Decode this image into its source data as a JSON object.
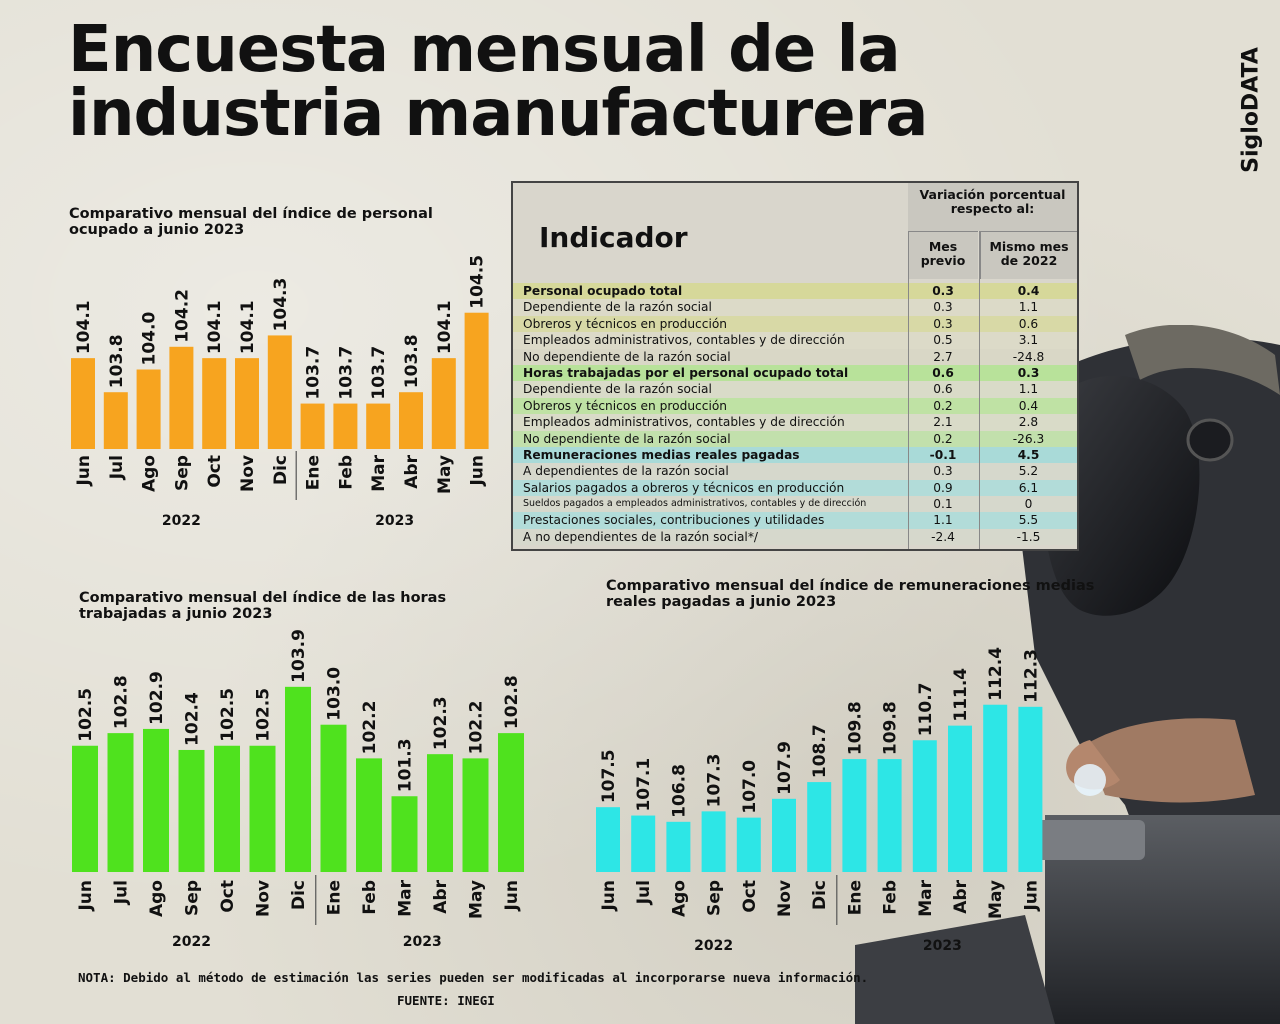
{
  "header": {
    "title_line1": "Encuesta mensual de la",
    "title_line2": "industria manufacturera",
    "brand": "SigloDATA"
  },
  "colors": {
    "personal": "#f7a41f",
    "horas": "#4fe21e",
    "remuneraciones": "#2de6e6"
  },
  "chart_data": [
    {
      "id": "personal",
      "type": "bar",
      "title": "Comparativo mensual del índice de personal ocupado a junio 2023",
      "categories": [
        "Jun",
        "Jul",
        "Ago",
        "Sep",
        "Oct",
        "Nov",
        "Dic",
        "Ene",
        "Feb",
        "Mar",
        "Abr",
        "May",
        "Jun"
      ],
      "values": [
        104.1,
        103.8,
        104.0,
        104.2,
        104.1,
        104.1,
        104.3,
        103.7,
        103.7,
        103.7,
        103.8,
        104.1,
        104.5
      ],
      "labels": [
        "104.1",
        "103.8",
        "104.0",
        "104.2",
        "104.1",
        "104.1",
        "104.3",
        "103.7",
        "103.7",
        "103.7",
        "103.8",
        "104.1",
        "104.5"
      ],
      "year_groups": [
        {
          "label": "2022",
          "from": 0,
          "to": 6
        },
        {
          "label": "2023",
          "from": 7,
          "to": 12
        }
      ],
      "ylim": [
        103.3,
        104.7
      ]
    },
    {
      "id": "horas",
      "type": "bar",
      "title": "Comparativo mensual del índice de las horas trabajadas a junio 2023",
      "categories": [
        "Jun",
        "Jul",
        "Ago",
        "Sep",
        "Oct",
        "Nov",
        "Dic",
        "Ene",
        "Feb",
        "Mar",
        "Abr",
        "May",
        "Jun"
      ],
      "values": [
        102.5,
        102.8,
        102.9,
        102.4,
        102.5,
        102.5,
        103.9,
        103.0,
        102.2,
        101.3,
        102.3,
        102.2,
        102.8
      ],
      "labels": [
        "102.5",
        "102.8",
        "102.9",
        "102.4",
        "102.5",
        "102.5",
        "103.9",
        "103.0",
        "102.2",
        "101.3",
        "102.3",
        "102.2",
        "102.8"
      ],
      "year_groups": [
        {
          "label": "2022",
          "from": 0,
          "to": 6
        },
        {
          "label": "2023",
          "from": 7,
          "to": 12
        }
      ],
      "ylim": [
        99.5,
        104.3
      ]
    },
    {
      "id": "remuneraciones",
      "type": "bar",
      "title": "Comparativo mensual del índice de remuneraciones medias reales pagadas a junio 2023",
      "categories": [
        "Jun",
        "Jul",
        "Ago",
        "Sep",
        "Oct",
        "Nov",
        "Dic",
        "Ene",
        "Feb",
        "Mar",
        "Abr",
        "May",
        "Jun"
      ],
      "values": [
        107.5,
        107.1,
        106.8,
        107.3,
        107.0,
        107.9,
        108.7,
        109.8,
        109.8,
        110.7,
        111.4,
        112.4,
        112.3
      ],
      "labels": [
        "107.5",
        "107.1",
        "106.8",
        "107.3",
        "107.0",
        "107.9",
        "108.7",
        "109.8",
        "109.8",
        "110.7",
        "111.4",
        "112.4",
        "112.3"
      ],
      "year_groups": [
        {
          "label": "2022",
          "from": 0,
          "to": 6
        },
        {
          "label": "2023",
          "from": 7,
          "to": 12
        }
      ],
      "ylim": [
        104.4,
        113.2
      ]
    }
  ],
  "table": {
    "header_indicator": "Indicador",
    "header_variation": "Variación porcentual respecto al:",
    "col1": "Mes previo",
    "col2": "Mismo mes de 2022",
    "rows": [
      {
        "label": "Personal ocupado total",
        "v1": "0.3",
        "v2": "0.4",
        "bold": true,
        "color": "#d6d89a"
      },
      {
        "label": "Dependiente de la razón social",
        "v1": "0.3",
        "v2": "1.1",
        "bold": false,
        "color": "#dcdac8"
      },
      {
        "label": "Obreros y técnicos en producción",
        "v1": "0.3",
        "v2": "0.6",
        "bold": false,
        "color": "#d8d9a6"
      },
      {
        "label": "Empleados administrativos, contables y de dirección",
        "v1": "0.5",
        "v2": "3.1",
        "bold": false,
        "color": "#dcdac8"
      },
      {
        "label": "No dependiente de la razón social",
        "v1": "2.7",
        "v2": "-24.8",
        "bold": false,
        "color": "#d9d7c6"
      },
      {
        "label": "Horas trabajadas por el personal ocupado total",
        "v1": "0.6",
        "v2": "0.3",
        "bold": true,
        "color": "#b8e29a"
      },
      {
        "label": "Dependiente de la razón social",
        "v1": "0.6",
        "v2": "1.1",
        "bold": false,
        "color": "#d9dbc8"
      },
      {
        "label": "Obreros y técnicos en producción",
        "v1": "0.2",
        "v2": "0.4",
        "bold": false,
        "color": "#bfe2a4"
      },
      {
        "label": "Empleados administrativos, contables y de dirección",
        "v1": "2.1",
        "v2": "2.8",
        "bold": false,
        "color": "#d9dbc8"
      },
      {
        "label": "No dependiente de la razón social",
        "v1": "0.2",
        "v2": "-26.3",
        "bold": false,
        "color": "#c2e0ac"
      },
      {
        "label": "Remuneraciones medias reales pagadas",
        "v1": "-0.1",
        "v2": "4.5",
        "bold": true,
        "color": "#a9dad8"
      },
      {
        "label": "A dependientes de la razón social",
        "v1": "0.3",
        "v2": "5.2",
        "bold": false,
        "color": "#d6d8cc"
      },
      {
        "label": "Salarios pagados a obreros y técnicos en producción",
        "v1": "0.9",
        "v2": "6.1",
        "bold": false,
        "color": "#b2dcd9"
      },
      {
        "label": "Sueldos pagados a empleados administrativos, contables y de dirección",
        "v1": "0.1",
        "v2": "0",
        "bold": false,
        "color": "#d6d8cc",
        "tiny": true
      },
      {
        "label": "Prestaciones sociales, contribuciones y utilidades",
        "v1": "1.1",
        "v2": "5.5",
        "bold": false,
        "color": "#b2dcd9"
      },
      {
        "label": "A no dependientes de la razón social*/",
        "v1": "-2.4",
        "v2": "-1.5",
        "bold": false,
        "color": "#d6d8cc"
      }
    ]
  },
  "footer": {
    "note": "NOTA: Debido al método de estimación las series pueden ser modificadas al incorporarse nueva información.",
    "source": "FUENTE: INEGI"
  }
}
